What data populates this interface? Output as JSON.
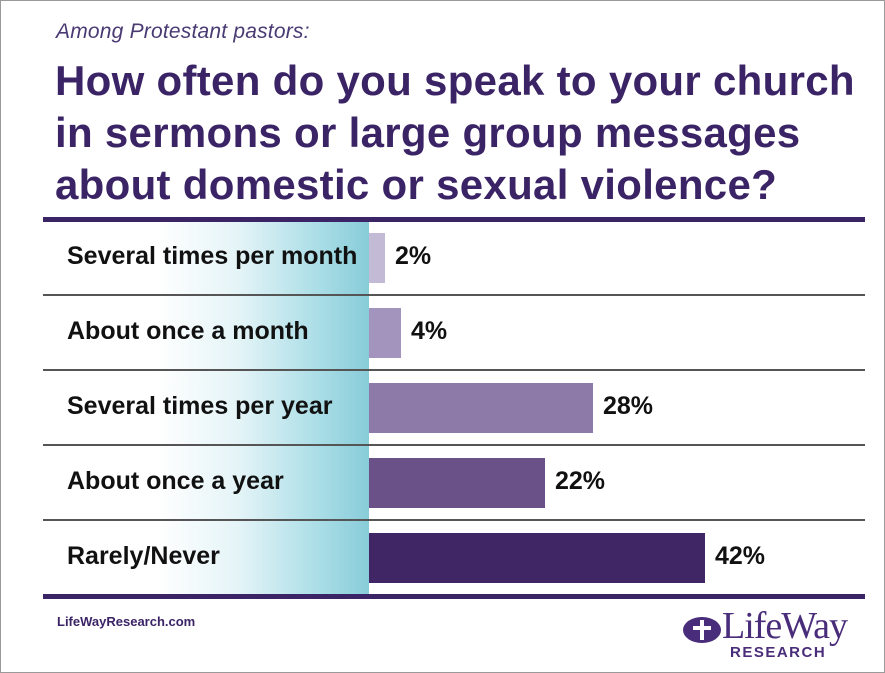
{
  "subtitle": "Among Protestant pastors:",
  "title": "How often do you speak to your church in sermons or large group messages about domestic or sexual violence?",
  "source": "LifeWayResearch.com",
  "logo": {
    "name": "LifeWay",
    "sub": "RESEARCH"
  },
  "colors": {
    "title": "#3b2466",
    "bars": [
      "#c3bbd6",
      "#a294bd",
      "#8e7aa9",
      "#6a5188",
      "#402664"
    ]
  },
  "chart_data": {
    "type": "bar",
    "orientation": "horizontal",
    "categories": [
      "Several times per month",
      "About once a month",
      "Several times per year",
      "About once a year",
      "Rarely/Never"
    ],
    "values": [
      2,
      4,
      28,
      22,
      42
    ],
    "value_labels": [
      "2%",
      "4%",
      "28%",
      "22%",
      "42%"
    ],
    "unit": "%",
    "xlim": [
      0,
      100
    ],
    "grid": false,
    "legend": "none"
  }
}
